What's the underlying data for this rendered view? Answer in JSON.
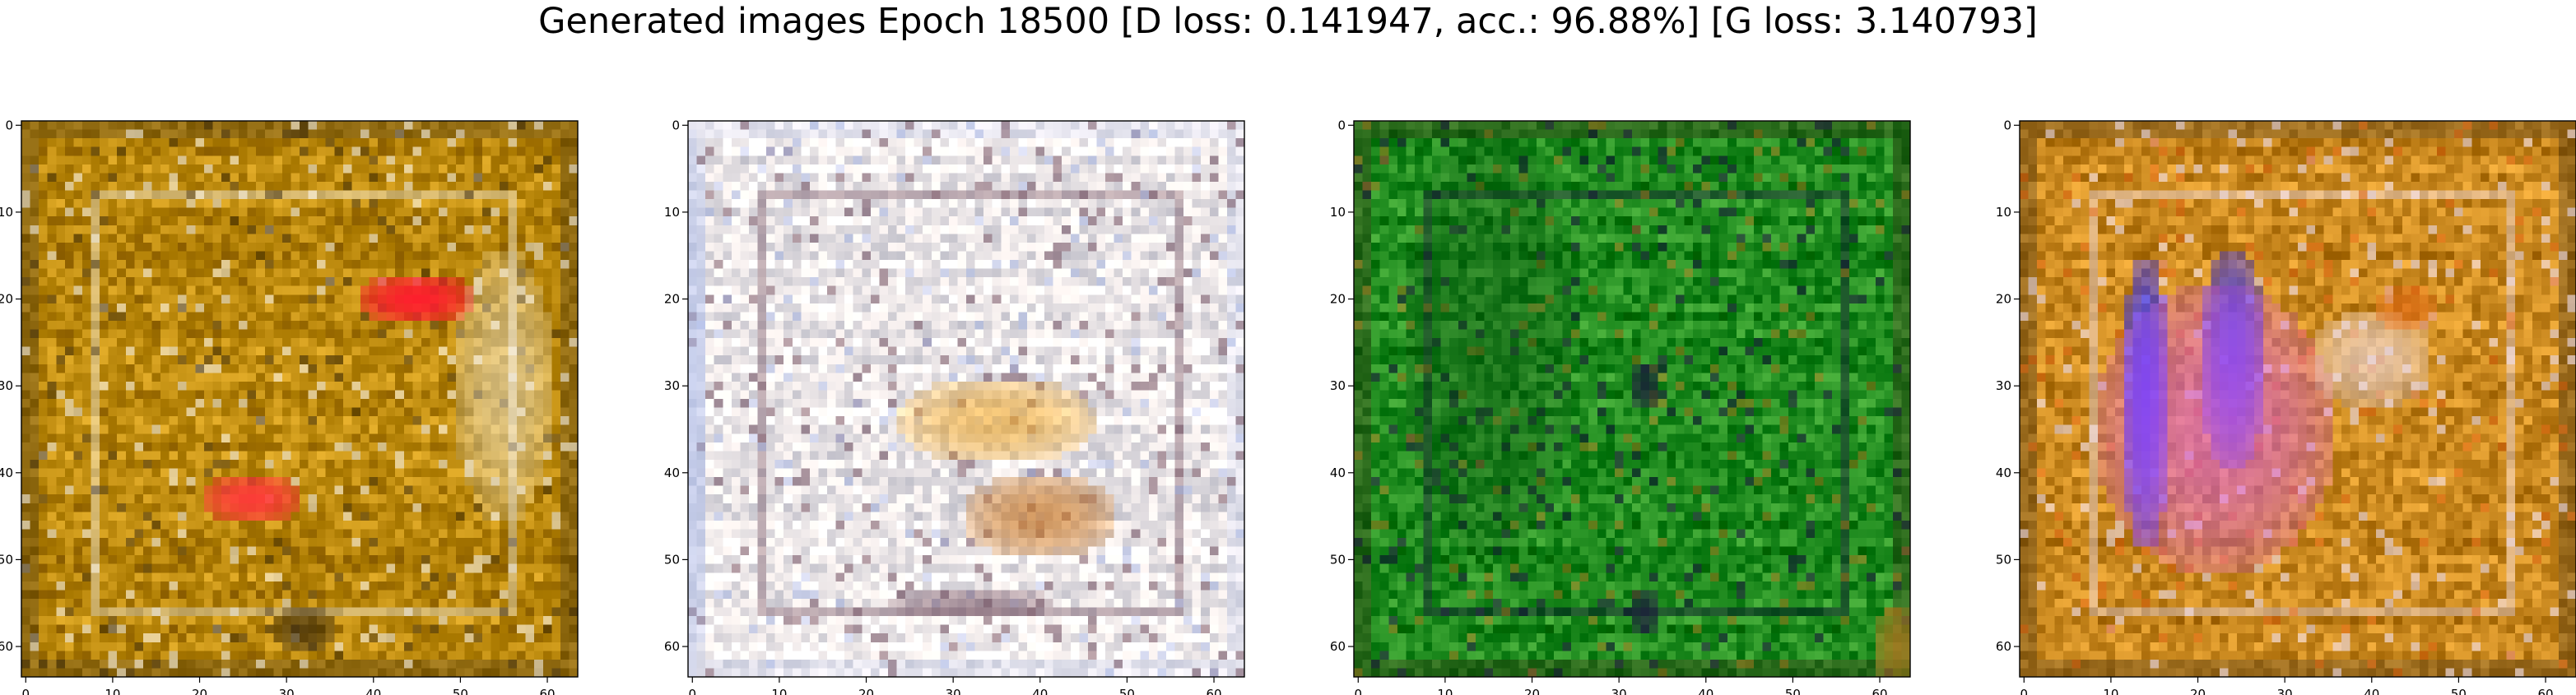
{
  "figure": {
    "suptitle": "Generated images Epoch 18500 [D loss: 0.141947, acc.: 96.88%] [G loss: 3.140793]"
  },
  "chart_data": [
    {
      "type": "heatmap",
      "title": "",
      "xlabel": "",
      "ylabel": "",
      "image_shape": [
        64,
        64
      ],
      "xlim": [
        -0.5,
        63.5
      ],
      "ylim": [
        63.5,
        -0.5
      ],
      "x_ticks": [
        "0",
        "10",
        "20",
        "30",
        "40",
        "50",
        "60"
      ],
      "y_ticks": [
        "0",
        "10",
        "20",
        "30",
        "40",
        "50",
        "60"
      ],
      "grid": false,
      "base_color": "#b8860b",
      "highlight_colors": [
        "#ff1a2e",
        "#ff3a3a",
        "#f5f0e6",
        "#3a2a10"
      ]
    },
    {
      "type": "heatmap",
      "title": "",
      "xlabel": "",
      "ylabel": "",
      "image_shape": [
        64,
        64
      ],
      "xlim": [
        -0.5,
        63.5
      ],
      "ylim": [
        63.5,
        -0.5
      ],
      "x_ticks": [
        "0",
        "10",
        "20",
        "30",
        "40",
        "50",
        "60"
      ],
      "y_ticks": [
        "0",
        "10",
        "20",
        "30",
        "40",
        "50",
        "60"
      ],
      "grid": false,
      "base_color": "#f2ecec",
      "highlight_colors": [
        "#e8a020",
        "#c87a2a",
        "#7a5a6a",
        "#a8b8e8"
      ]
    },
    {
      "type": "heatmap",
      "title": "",
      "xlabel": "",
      "ylabel": "",
      "image_shape": [
        64,
        64
      ],
      "xlim": [
        -0.5,
        63.5
      ],
      "ylim": [
        63.5,
        -0.5
      ],
      "x_ticks": [
        "0",
        "10",
        "20",
        "30",
        "40",
        "50",
        "60"
      ],
      "y_ticks": [
        "0",
        "10",
        "20",
        "30",
        "40",
        "50",
        "60"
      ],
      "grid": false,
      "base_color": "#1e8a1e",
      "highlight_colors": [
        "#0c4a10",
        "#2fa82f",
        "#1a1a3a",
        "#b07a20"
      ]
    },
    {
      "type": "heatmap",
      "title": "",
      "xlabel": "",
      "ylabel": "",
      "image_shape": [
        64,
        64
      ],
      "xlim": [
        -0.5,
        63.5
      ],
      "ylim": [
        63.5,
        -0.5
      ],
      "x_ticks": [
        "0",
        "10",
        "20",
        "30",
        "40",
        "50",
        "60"
      ],
      "y_ticks": [
        "0",
        "10",
        "20",
        "30",
        "40",
        "50",
        "60"
      ],
      "grid": false,
      "base_color": "#c8871e",
      "highlight_colors": [
        "#3030ff",
        "#e060e8",
        "#f0e0f0",
        "#e06010"
      ]
    }
  ]
}
